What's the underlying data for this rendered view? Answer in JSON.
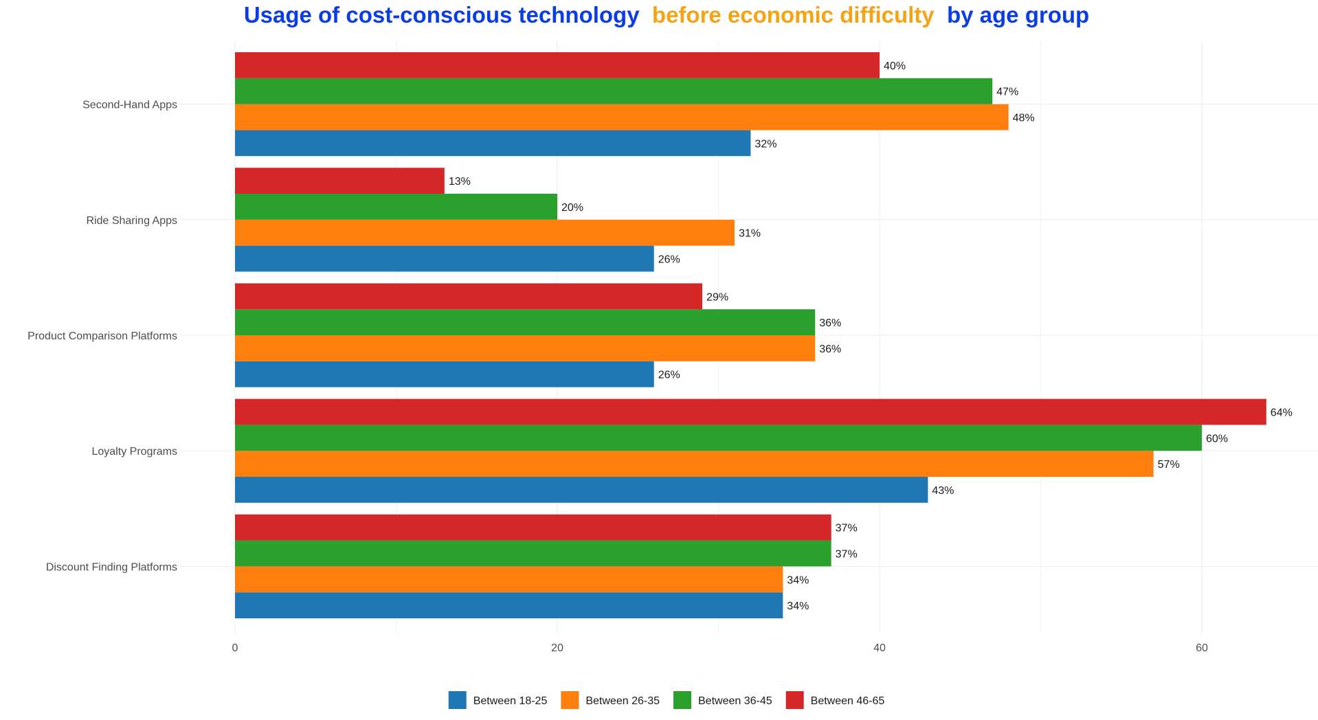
{
  "chart_data": {
    "type": "bar",
    "orientation": "horizontal",
    "title_parts": [
      {
        "text": "Usage of cost-conscious technology",
        "color": "#0a3de6"
      },
      {
        "text": "before economic difficulty",
        "color": "#f5a312"
      },
      {
        "text": "by age group",
        "color": "#0a3de6"
      }
    ],
    "categories": [
      "Second-Hand Apps",
      "Ride Sharing Apps",
      "Product Comparison Platforms",
      "Loyalty Programs",
      "Discount Finding Platforms"
    ],
    "series": [
      {
        "name": "Between 18-25",
        "color": "#1f77b4",
        "values": [
          32,
          26,
          26,
          43,
          34
        ]
      },
      {
        "name": "Between 26-35",
        "color": "#ff7f0e",
        "values": [
          48,
          31,
          36,
          57,
          34
        ]
      },
      {
        "name": "Between 36-45",
        "color": "#2ca02c",
        "values": [
          47,
          20,
          36,
          60,
          37
        ]
      },
      {
        "name": "Between 46-65",
        "color": "#d62728",
        "values": [
          40,
          13,
          29,
          64,
          37
        ]
      }
    ],
    "value_label_suffix": "%",
    "xticks": [
      0,
      20,
      40,
      60
    ],
    "xlim": [
      0,
      67
    ],
    "xlabel": "",
    "ylabel": "",
    "grid": true,
    "legend_position": "bottom"
  }
}
